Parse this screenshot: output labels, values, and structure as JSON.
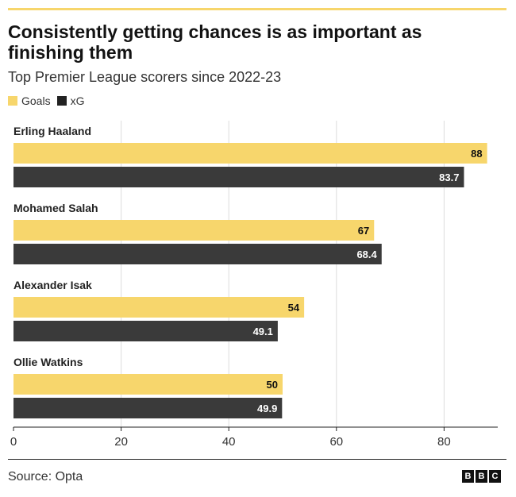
{
  "header": {
    "title": "Consistently getting chances is as important as finishing them",
    "subtitle": "Top Premier League scorers since 2022-23"
  },
  "chart_data": {
    "type": "bar",
    "orientation": "horizontal",
    "categories": [
      "Erling Haaland",
      "Mohamed Salah",
      "Alexander Isak",
      "Ollie Watkins"
    ],
    "series": [
      {
        "name": "Goals",
        "color": "#F7D66C",
        "values": [
          88,
          67,
          54,
          50
        ],
        "labels": [
          "88",
          "67",
          "54",
          "50"
        ]
      },
      {
        "name": "xG",
        "color": "#3A3A3A",
        "values": [
          83.7,
          68.4,
          49.1,
          49.9
        ],
        "labels": [
          "83.7",
          "68.4",
          "49.1",
          "49.9"
        ]
      }
    ],
    "xlim": [
      0,
      90
    ],
    "xticks": [
      0,
      20,
      40,
      60,
      80
    ],
    "xtick_labels": [
      "0",
      "20",
      "40",
      "60",
      "80"
    ],
    "grid": true,
    "legend": "top-left"
  },
  "footer": {
    "source": "Source: Opta",
    "logo_letters": [
      "B",
      "B",
      "C"
    ]
  }
}
